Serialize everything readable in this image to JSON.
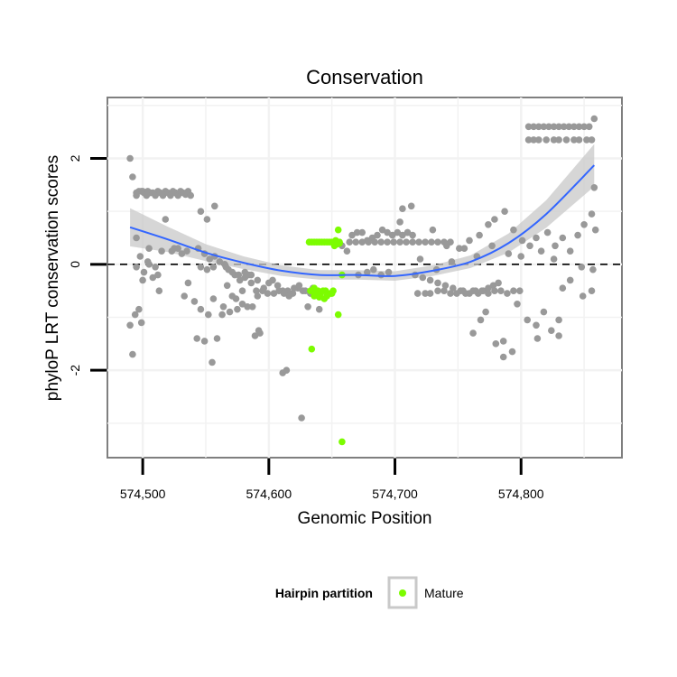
{
  "chart_data": {
    "type": "scatter",
    "title": "Conservation",
    "xlabel": "Genomic Position",
    "ylabel": "phyloP LRT conservation scores",
    "xlim": [
      574472,
      574880
    ],
    "ylim": [
      -3.65,
      3.15
    ],
    "x_ticks": [
      574500,
      574600,
      574700,
      574800
    ],
    "x_tick_labels": [
      "574,500",
      "574,600",
      "574,700",
      "574,800"
    ],
    "y_ticks": [
      -2,
      0,
      2
    ],
    "y_tick_labels": [
      "-2",
      "0",
      "2"
    ],
    "grid": true,
    "reference_line": {
      "y": 0,
      "style": "dashed"
    },
    "legend": {
      "position": "bottom",
      "title": "Hairpin partition",
      "items": [
        {
          "label": "Mature",
          "color": "#7CFC00"
        }
      ]
    },
    "colors": {
      "other": "#999999",
      "mature": "#7CFC00",
      "smooth": "#3366FF",
      "ribbon": "#C8C8C8"
    },
    "smooth_line": {
      "x": [
        574490,
        574520,
        574550,
        574580,
        574610,
        574640,
        574670,
        574700,
        574730,
        574760,
        574790,
        574820,
        574858
      ],
      "y": [
        0.7,
        0.47,
        0.22,
        0.03,
        -0.12,
        -0.2,
        -0.2,
        -0.22,
        -0.12,
        0.05,
        0.4,
        0.95,
        1.87
      ],
      "ribbon_width": [
        0.36,
        0.24,
        0.16,
        0.12,
        0.1,
        0.09,
        0.09,
        0.09,
        0.1,
        0.12,
        0.18,
        0.26,
        0.4
      ]
    },
    "series": [
      {
        "name": "",
        "x": [
          574490,
          574492,
          574495,
          574495,
          574497,
          574499,
          574500,
          574501,
          574503,
          574504,
          574506,
          574508,
          574510,
          574512,
          574514,
          574516,
          574518,
          574520,
          574522,
          574524,
          574526,
          574528,
          574530,
          574532,
          574534,
          574536,
          574538,
          574501,
          574505,
          574508,
          574512,
          574500,
          574504,
          574510,
          574515,
          574523,
          574528,
          574533,
          574490,
          574492,
          574494,
          574497,
          574499,
          574513,
          574518,
          574525,
          574531,
          574536,
          574495,
          574505,
          574535,
          574495,
          574498,
          574541,
          574546,
          574552,
          574556,
          574563,
          574567,
          574571,
          574575,
          574579,
          574583,
          574587,
          574591,
          574595,
          574599,
          574603,
          574607,
          574611,
          574615,
          574619,
          574623,
          574627,
          574631,
          574635,
          574544,
          574549,
          574553,
          574557,
          574561,
          574565,
          574568,
          574573,
          574577,
          574581,
          574586,
          574590,
          574596,
          574600,
          574604,
          574608,
          574612,
          574616,
          574620,
          574624,
          574629,
          574633,
          574546,
          574551,
          574556,
          574566,
          574571,
          574576,
          574581,
          574586,
          574591,
          574546,
          574551,
          574557,
          574543,
          574549,
          574555,
          574559,
          574564,
          574569,
          574574,
          574579,
          574584,
          574589,
          574592,
          574593,
          574611,
          574614,
          574626,
          574640,
          574658,
          574662,
          574666,
          574670,
          574674,
          574678,
          574682,
          574686,
          574690,
          574694,
          574698,
          574702,
          574706,
          574710,
          574714,
          574664,
          574669,
          574674,
          574679,
          574684,
          574689,
          574694,
          574699,
          574704,
          574709,
          574714,
          574719,
          574724,
          574729,
          574734,
          574739,
          574744,
          574671,
          574678,
          574683,
          574689,
          574695,
          574716,
          574722,
          574728,
          574734,
          574740,
          574746,
          574752,
          574756,
          574762,
          574766,
          574770,
          574774,
          574778,
          574782,
          574718,
          574724,
          574728,
          574734,
          574739,
          574744,
          574749,
          574754,
          574759,
          574764,
          574769,
          574774,
          574779,
          574784,
          574789,
          574794,
          574799,
          574704,
          574713,
          574730,
          574741,
          574751,
          574759,
          574767,
          574774,
          574779,
          574787,
          574794,
          574801,
          574807,
          574812,
          574821,
          574827,
          574833,
          574839,
          574845,
          574850,
          574856,
          574859,
          574706,
          574710,
          574720,
          574733,
          574745,
          574755,
          574765,
          574777,
          574790,
          574800,
          574816,
          574826,
          574839,
          574848,
          574857,
          574762,
          574768,
          574772,
          574780,
          574786,
          574793,
          574805,
          574812,
          574818,
          574824,
          574830,
          574806,
          574810,
          574814,
          574818,
          574822,
          574826,
          574830,
          574834,
          574838,
          574842,
          574846,
          574850,
          574854,
          574858,
          574806,
          574810,
          574814,
          574820,
          574826,
          574830,
          574836,
          574842,
          574846,
          574852,
          574856,
          574813,
          574830,
          574849,
          574856,
          574858,
          574786,
          574797,
          574833
        ],
        "y": [
          2.0,
          1.65,
          1.3,
          1.35,
          1.38,
          1.38,
          1.38,
          1.35,
          1.3,
          1.38,
          1.35,
          1.35,
          1.3,
          1.38,
          1.35,
          1.3,
          1.38,
          1.35,
          1.3,
          1.38,
          1.35,
          1.3,
          1.38,
          1.35,
          1.32,
          1.38,
          1.3,
          -0.15,
          0.0,
          -0.25,
          -0.2,
          -0.3,
          0.05,
          -0.05,
          0.25,
          0.25,
          0.3,
          -0.6,
          -1.15,
          -1.7,
          -0.95,
          -0.85,
          -1.1,
          -0.5,
          0.85,
          0.3,
          0.2,
          -0.35,
          0.5,
          0.3,
          0.25,
          -0.05,
          0.15,
          -0.7,
          -0.85,
          -0.95,
          -0.65,
          -0.95,
          -0.4,
          -0.6,
          -0.85,
          -0.5,
          -0.8,
          -0.8,
          -0.6,
          -0.5,
          -0.55,
          -0.3,
          -0.4,
          -0.5,
          -0.5,
          -0.55,
          -0.45,
          -0.5,
          -0.8,
          -0.45,
          0.3,
          0.2,
          0.1,
          0.15,
          0.05,
          0.0,
          -0.1,
          -0.2,
          -0.3,
          -0.15,
          -0.35,
          -0.5,
          -0.45,
          -0.35,
          -0.55,
          -0.5,
          -0.55,
          -0.6,
          -0.45,
          -0.4,
          -0.5,
          -0.55,
          -0.05,
          -0.1,
          -0.05,
          -0.05,
          -0.15,
          -0.2,
          -0.25,
          -0.2,
          -0.3,
          1.0,
          0.85,
          1.1,
          -1.4,
          -1.45,
          -1.85,
          -1.4,
          -0.8,
          -0.9,
          -0.65,
          -0.75,
          -0.2,
          -1.35,
          -1.25,
          -1.3,
          -2.05,
          -2.0,
          -2.9,
          -0.85,
          0.35,
          0.25,
          0.55,
          0.6,
          0.6,
          0.45,
          0.5,
          0.55,
          0.65,
          0.6,
          0.55,
          0.6,
          0.55,
          0.6,
          0.55,
          0.42,
          0.42,
          0.42,
          0.42,
          0.42,
          0.42,
          0.42,
          0.42,
          0.42,
          0.42,
          0.42,
          0.42,
          0.42,
          0.42,
          0.42,
          0.42,
          0.42,
          -0.2,
          -0.15,
          -0.1,
          -0.2,
          -0.15,
          -0.2,
          -0.25,
          -0.3,
          -0.35,
          -0.4,
          -0.45,
          -0.5,
          -0.55,
          -0.5,
          -0.55,
          -0.5,
          -0.45,
          -0.4,
          -0.35,
          -0.55,
          -0.55,
          -0.55,
          -0.5,
          -0.5,
          -0.55,
          -0.55,
          -0.5,
          -0.55,
          -0.5,
          -0.5,
          -0.55,
          -0.5,
          -0.5,
          -0.55,
          -0.5,
          -0.5,
          0.8,
          1.1,
          0.65,
          0.35,
          0.3,
          0.45,
          0.55,
          0.75,
          0.85,
          1.0,
          0.65,
          0.45,
          0.35,
          0.5,
          0.6,
          0.35,
          0.5,
          0.25,
          0.55,
          0.75,
          0.95,
          0.65,
          1.05,
          0.6,
          0.1,
          -0.1,
          0.05,
          0.3,
          0.15,
          0.35,
          0.2,
          0.15,
          0.25,
          0.1,
          -0.3,
          -0.05,
          -0.1,
          -1.3,
          -1.05,
          -0.9,
          -1.5,
          -1.45,
          -1.65,
          -1.05,
          -1.15,
          -0.9,
          -1.25,
          -1.35,
          2.6,
          2.6,
          2.6,
          2.6,
          2.6,
          2.6,
          2.6,
          2.6,
          2.6,
          2.6,
          2.6,
          2.6,
          2.6,
          2.75,
          2.35,
          2.35,
          2.35,
          2.35,
          2.35,
          2.35,
          2.35,
          2.35,
          2.35,
          2.35,
          2.35,
          -1.4,
          -1.05,
          -0.6,
          -0.5,
          1.45,
          -1.75,
          -0.75,
          -0.45
        ]
      },
      {
        "name": "Mature",
        "x": [
          574632,
          574634,
          574636,
          574638,
          574640,
          574642,
          574644,
          574646,
          574648,
          574650,
          574652,
          574654,
          574656,
          574633,
          574635,
          574637,
          574639,
          574641,
          574643,
          574645,
          574647,
          574649,
          574651,
          574652,
          574653,
          574655,
          574656,
          574658,
          574655,
          574634,
          574636,
          574654,
          574646,
          574658,
          574640,
          574650,
          574644,
          574636
        ],
        "y": [
          0.42,
          0.42,
          0.42,
          0.42,
          0.42,
          0.42,
          0.42,
          0.42,
          0.42,
          0.42,
          0.42,
          0.42,
          0.42,
          -0.5,
          -0.5,
          -0.55,
          -0.5,
          -0.55,
          -0.5,
          -0.5,
          -0.55,
          -0.55,
          -0.5,
          0.35,
          0.45,
          0.65,
          0.4,
          -3.35,
          -0.95,
          -1.6,
          -0.6,
          0.38,
          -0.6,
          -0.2,
          -0.62,
          -0.55,
          -0.65,
          -0.45
        ]
      }
    ]
  }
}
